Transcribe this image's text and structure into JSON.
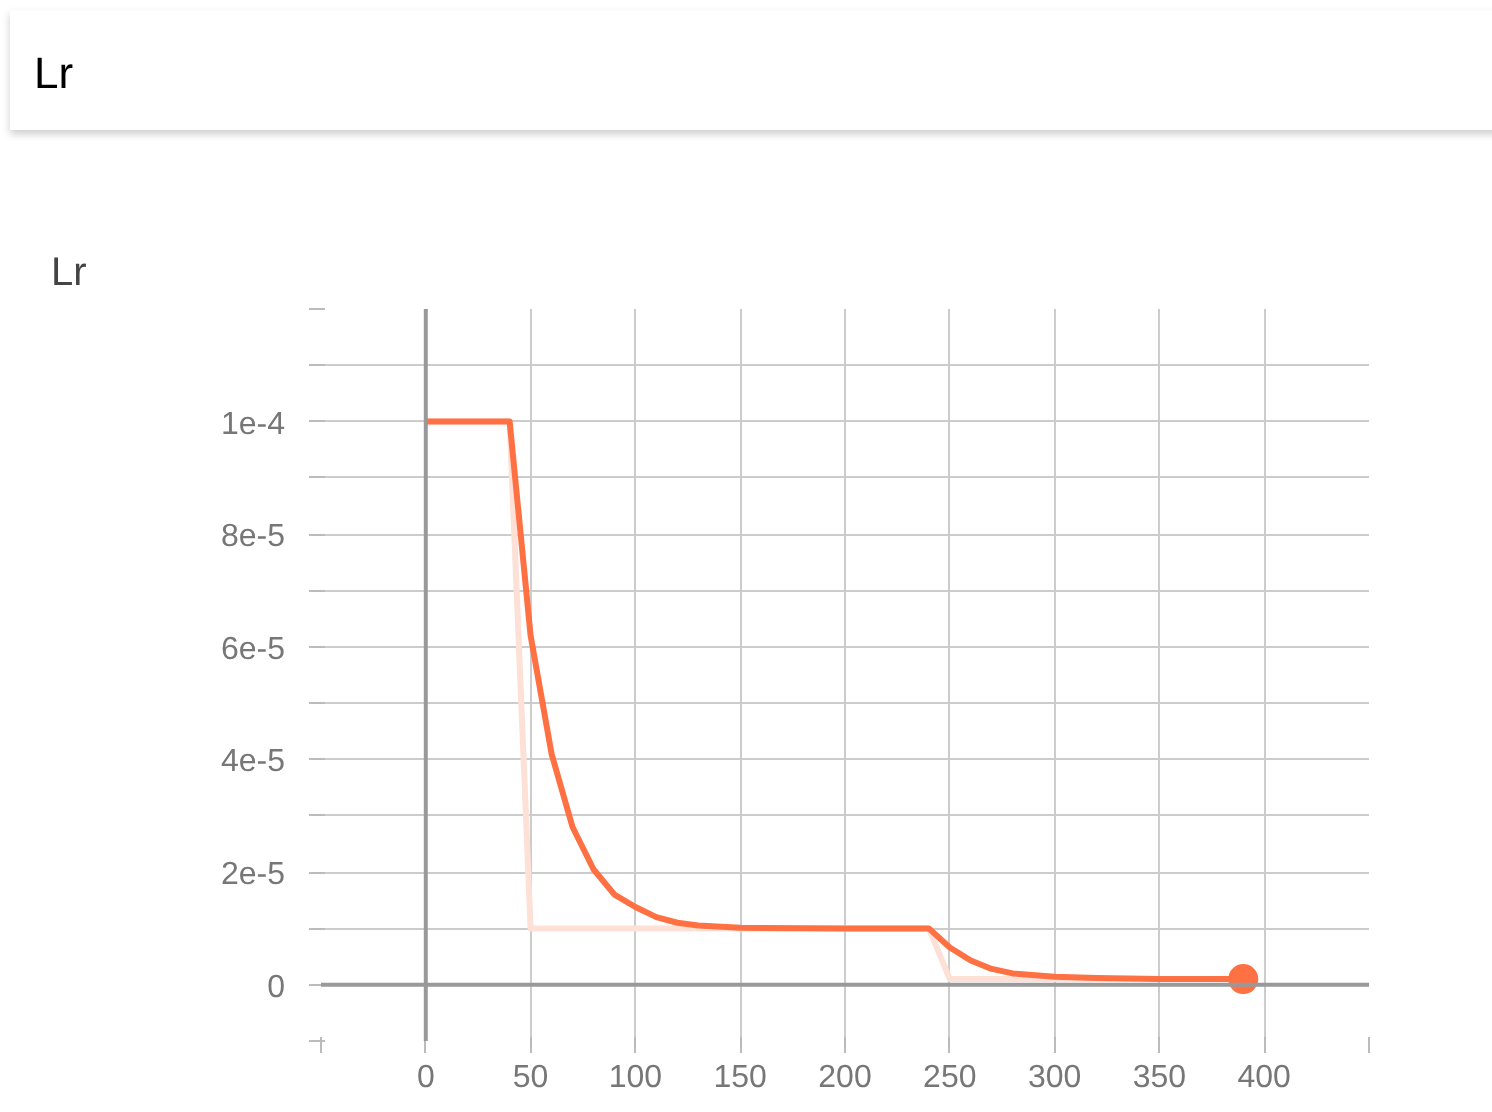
{
  "chart_data": {
    "type": "line",
    "title": "Lr",
    "subtitle": "Lr",
    "x": [
      0,
      10,
      20,
      30,
      40,
      50,
      60,
      70,
      80,
      90,
      100,
      110,
      120,
      130,
      150,
      200,
      240,
      250,
      260,
      270,
      280,
      300,
      320,
      350,
      390
    ],
    "series": [
      {
        "color": "#fde0d6",
        "x": [
          0,
          40,
          50,
          240,
          250,
          390
        ],
        "values": [
          0.0001,
          0.0001,
          1e-05,
          1e-05,
          1e-06,
          1e-06
        ]
      },
      {
        "color": "#ff7043",
        "values": [
          0.0001,
          0.0001,
          0.0001,
          0.0001,
          0.0001,
          6.2e-05,
          4.1e-05,
          2.8e-05,
          2.05e-05,
          1.6e-05,
          1.38e-05,
          1.2e-05,
          1.1e-05,
          1.05e-05,
          1.01e-05,
          1e-05,
          1e-05,
          6.6e-06,
          4.3e-06,
          2.8e-06,
          2e-06,
          1.4e-06,
          1.2e-06,
          1e-06,
          1e-06
        ]
      }
    ],
    "xlim": [
      -50,
      450
    ],
    "xticks": [
      {
        "value": -50,
        "label": null
      },
      0,
      50,
      100,
      150,
      200,
      250,
      300,
      350,
      400,
      {
        "value": 450,
        "label": null
      }
    ],
    "ylim": [
      -1e-05,
      0.00012
    ],
    "yticks": [
      {
        "value": -1e-05,
        "label": null
      },
      0,
      {
        "value": 1e-05,
        "label": null
      },
      {
        "value": 2e-05,
        "label": "2e-5"
      },
      {
        "value": 3e-05,
        "label": null
      },
      {
        "value": 4e-05,
        "label": "4e-5"
      },
      {
        "value": 5e-05,
        "label": null
      },
      {
        "value": 6e-05,
        "label": "6e-5"
      },
      {
        "value": 7e-05,
        "label": null
      },
      {
        "value": 8e-05,
        "label": "8e-5"
      },
      {
        "value": 9e-05,
        "label": null
      },
      {
        "value": 0.0001,
        "label": "1e-4"
      },
      {
        "value": 0.00011,
        "label": null
      },
      {
        "value": 0.00012,
        "label": null
      }
    ],
    "grid": true
  }
}
